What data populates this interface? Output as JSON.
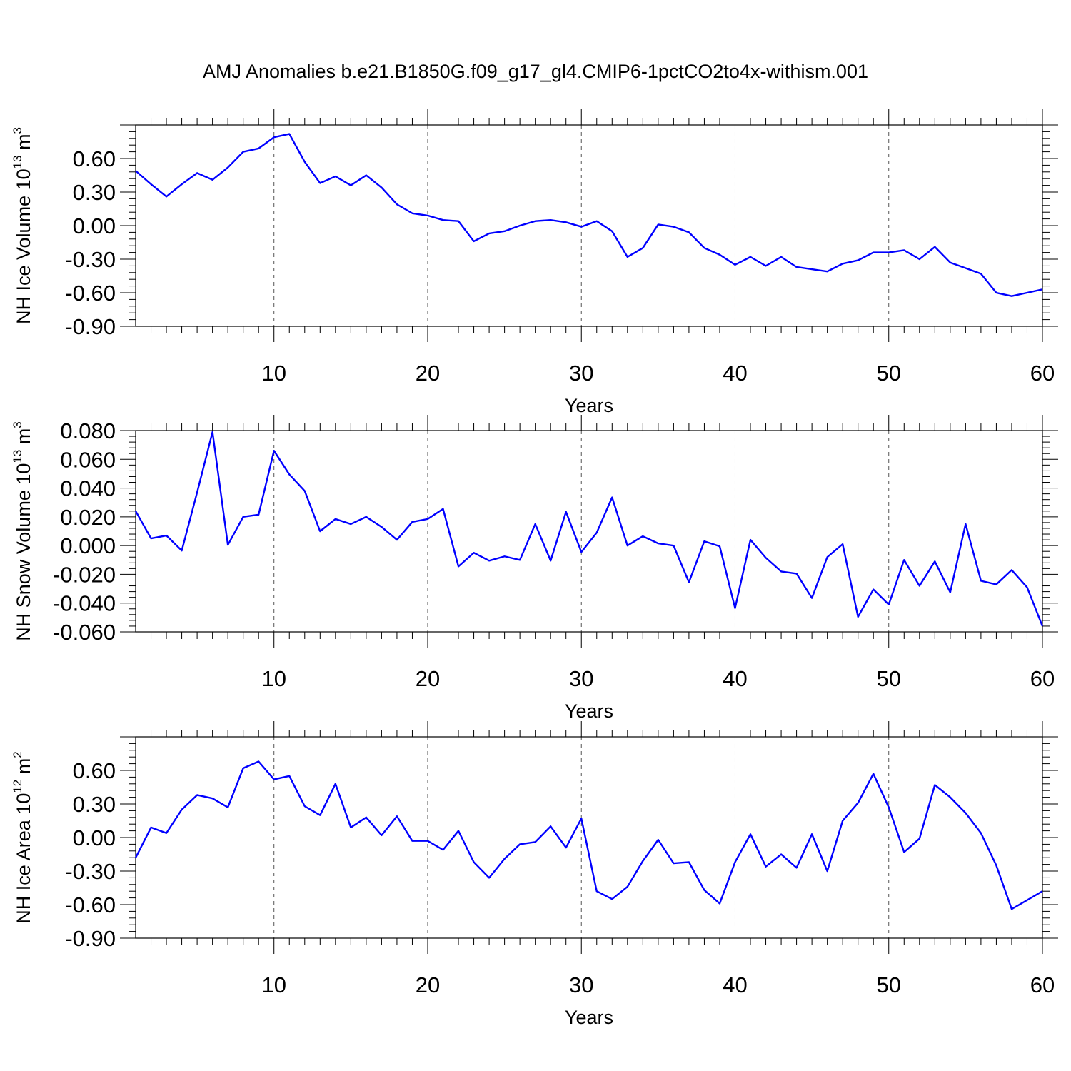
{
  "title": "AMJ Anomalies b.e21.B1850G.f09_g17_gl4.CMIP6-1pctCO2to4x-withism.001",
  "colors": {
    "line": "#0000ff",
    "frame": "#000000",
    "grid": "#555555"
  },
  "chart_data": [
    {
      "type": "line",
      "xlabel": "Years",
      "ylabel_main": "NH Ice Volume 10",
      "ylabel_exp": "13",
      "ylabel_tail": " m",
      "ylabel_unit_exp": "3",
      "xlim": [
        1,
        60
      ],
      "ylim": [
        -0.9,
        0.9
      ],
      "xticks": [
        10,
        20,
        30,
        40,
        50,
        60
      ],
      "yticks": [
        -0.9,
        -0.6,
        -0.3,
        0.0,
        0.3,
        0.6
      ],
      "ytick_labels": [
        "-0.90",
        "-0.60",
        "-0.30",
        "0.00",
        "0.30",
        "0.60"
      ],
      "grid": "vertical dashed at major x ticks",
      "x": [
        1,
        2,
        3,
        4,
        5,
        6,
        7,
        8,
        9,
        10,
        11,
        12,
        13,
        14,
        15,
        16,
        17,
        18,
        19,
        20,
        21,
        22,
        23,
        24,
        25,
        26,
        27,
        28,
        29,
        30,
        31,
        32,
        33,
        34,
        35,
        36,
        37,
        38,
        39,
        40,
        41,
        42,
        43,
        44,
        45,
        46,
        47,
        48,
        49,
        50,
        51,
        52,
        53,
        54,
        55,
        56,
        57,
        58,
        59,
        60
      ],
      "y": [
        0.49,
        0.37,
        0.26,
        0.37,
        0.47,
        0.41,
        0.52,
        0.66,
        0.69,
        0.79,
        0.82,
        0.57,
        0.38,
        0.44,
        0.36,
        0.45,
        0.34,
        0.19,
        0.11,
        0.09,
        0.05,
        0.04,
        -0.14,
        -0.07,
        -0.05,
        0.0,
        0.04,
        0.05,
        0.03,
        -0.01,
        0.04,
        -0.05,
        -0.28,
        -0.2,
        0.01,
        -0.01,
        -0.06,
        -0.2,
        -0.26,
        -0.35,
        -0.28,
        -0.36,
        -0.28,
        -0.37,
        -0.39,
        -0.41,
        -0.34,
        -0.31,
        -0.24,
        -0.24,
        -0.22,
        -0.3,
        -0.19,
        -0.33,
        -0.38,
        -0.43,
        -0.6,
        -0.63,
        -0.6,
        -0.57
      ]
    },
    {
      "type": "line",
      "xlabel": "Years",
      "ylabel_main": "NH Snow Volume 10",
      "ylabel_exp": "13",
      "ylabel_tail": " m",
      "ylabel_unit_exp": "3",
      "xlim": [
        1,
        60
      ],
      "ylim": [
        -0.06,
        0.08
      ],
      "xticks": [
        10,
        20,
        30,
        40,
        50,
        60
      ],
      "yticks": [
        -0.06,
        -0.04,
        -0.02,
        0.0,
        0.02,
        0.04,
        0.06,
        0.08
      ],
      "ytick_labels": [
        "-0.060",
        "-0.040",
        "-0.020",
        "0.000",
        "0.020",
        "0.040",
        "0.060",
        "0.080"
      ],
      "grid": "vertical dashed at major x ticks",
      "x": [
        1,
        2,
        3,
        4,
        5,
        6,
        7,
        8,
        9,
        10,
        11,
        12,
        13,
        14,
        15,
        16,
        17,
        18,
        19,
        20,
        21,
        22,
        23,
        24,
        25,
        26,
        27,
        28,
        29,
        30,
        31,
        32,
        33,
        34,
        35,
        36,
        37,
        38,
        39,
        40,
        41,
        42,
        43,
        44,
        45,
        46,
        47,
        48,
        49,
        50,
        51,
        52,
        53,
        54,
        55,
        56,
        57,
        58,
        59,
        60
      ],
      "y": [
        0.024,
        0.005,
        0.007,
        -0.0035,
        0.037,
        0.079,
        0.0005,
        0.02,
        0.0215,
        0.066,
        0.0495,
        0.038,
        0.01,
        0.0185,
        0.015,
        0.02,
        0.013,
        0.004,
        0.0165,
        0.0185,
        0.0255,
        -0.0145,
        -0.005,
        -0.0105,
        -0.0075,
        -0.01,
        0.015,
        -0.0105,
        0.0235,
        -0.0045,
        0.009,
        0.0335,
        0.0,
        0.0065,
        0.0015,
        0.0,
        -0.0255,
        0.003,
        -0.0005,
        -0.0435,
        0.004,
        -0.0085,
        -0.018,
        -0.0195,
        -0.0365,
        -0.008,
        0.001,
        -0.0495,
        -0.0305,
        -0.041,
        -0.01,
        -0.028,
        -0.011,
        -0.0325,
        0.015,
        -0.0245,
        -0.027,
        -0.017,
        -0.029,
        -0.056
      ]
    },
    {
      "type": "line",
      "xlabel": "Years",
      "ylabel_main": "NH Ice Area 10",
      "ylabel_exp": "12",
      "ylabel_tail": " m",
      "ylabel_unit_exp": "2",
      "xlim": [
        1,
        60
      ],
      "ylim": [
        -0.9,
        0.9
      ],
      "xticks": [
        10,
        20,
        30,
        40,
        50,
        60
      ],
      "yticks": [
        -0.9,
        -0.6,
        -0.3,
        0.0,
        0.3,
        0.6
      ],
      "ytick_labels": [
        "-0.90",
        "-0.60",
        "-0.30",
        "0.00",
        "0.30",
        "0.60"
      ],
      "grid": "vertical dashed at major x ticks",
      "x": [
        1,
        2,
        3,
        4,
        5,
        6,
        7,
        8,
        9,
        10,
        11,
        12,
        13,
        14,
        15,
        16,
        17,
        18,
        19,
        20,
        21,
        22,
        23,
        24,
        25,
        26,
        27,
        28,
        29,
        30,
        31,
        32,
        33,
        34,
        35,
        36,
        37,
        38,
        39,
        40,
        41,
        42,
        43,
        44,
        45,
        46,
        47,
        48,
        49,
        50,
        51,
        52,
        53,
        54,
        55,
        56,
        57,
        58,
        59,
        60
      ],
      "y": [
        -0.18,
        0.09,
        0.04,
        0.25,
        0.38,
        0.35,
        0.27,
        0.62,
        0.68,
        0.52,
        0.55,
        0.28,
        0.2,
        0.48,
        0.09,
        0.18,
        0.02,
        0.19,
        -0.03,
        -0.03,
        -0.11,
        0.06,
        -0.22,
        -0.36,
        -0.19,
        -0.06,
        -0.04,
        0.1,
        -0.09,
        0.17,
        -0.48,
        -0.55,
        -0.44,
        -0.21,
        -0.02,
        -0.23,
        -0.22,
        -0.47,
        -0.59,
        -0.22,
        0.03,
        -0.26,
        -0.15,
        -0.27,
        0.03,
        -0.3,
        0.15,
        0.31,
        0.57,
        0.27,
        -0.13,
        -0.01,
        0.47,
        0.36,
        0.22,
        0.04,
        -0.25,
        -0.64,
        -0.56,
        -0.48
      ]
    }
  ]
}
